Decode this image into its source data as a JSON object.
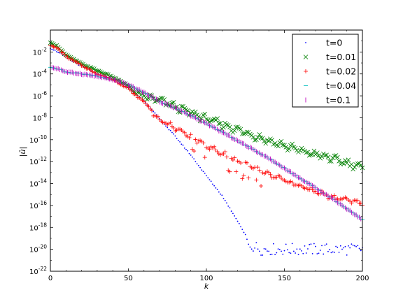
{
  "chart_data": {
    "type": "scatter",
    "title": "",
    "xlabel": "k",
    "ylabel": "|û|",
    "xlim": [
      0,
      200
    ],
    "ylim": [
      1e-22,
      1
    ],
    "yscale": "log",
    "grid": false,
    "legend_position": "top-right",
    "x_ticks": [
      0,
      50,
      100,
      150,
      200
    ],
    "x_tick_labels": [
      "0",
      "50",
      "100",
      "150",
      "200"
    ],
    "y_ticks": [
      1e-22,
      1e-20,
      1e-18,
      1e-16,
      1e-14,
      1e-12,
      1e-10,
      1e-08,
      1e-06,
      0.0001,
      0.01
    ],
    "y_tick_labels": [
      {
        "base": "10",
        "exp": "-22"
      },
      {
        "base": "10",
        "exp": "-20"
      },
      {
        "base": "10",
        "exp": "-18"
      },
      {
        "base": "10",
        "exp": "-16"
      },
      {
        "base": "10",
        "exp": "-14"
      },
      {
        "base": "10",
        "exp": "-12"
      },
      {
        "base": "10",
        "exp": "-10"
      },
      {
        "base": "10",
        "exp": "-8"
      },
      {
        "base": "10",
        "exp": "-6"
      },
      {
        "base": "10",
        "exp": "-4"
      },
      {
        "base": "10",
        "exp": "-2"
      }
    ],
    "series": [
      {
        "name": "t=0",
        "marker": "dot",
        "color": "#0000ff",
        "points": [
          [
            0,
            0.02
          ],
          [
            5,
            0.01
          ],
          [
            10,
            0.003
          ],
          [
            20,
            0.0005
          ],
          [
            30,
            0.0001
          ],
          [
            40,
            3e-05
          ],
          [
            50,
            5e-06
          ],
          [
            60,
            4e-07
          ],
          [
            65,
            5e-08
          ],
          [
            70,
            8e-09
          ],
          [
            80,
            2e-10
          ],
          [
            90,
            4e-12
          ],
          [
            100,
            5e-14
          ],
          [
            110,
            8e-16
          ],
          [
            120,
            4e-18
          ],
          [
            125,
            2e-19
          ],
          [
            127,
            3e-20
          ],
          [
            135,
            1e-20
          ],
          [
            150,
            1e-20
          ],
          [
            170,
            1e-20
          ],
          [
            190,
            1e-20
          ],
          [
            200,
            1e-20
          ]
        ]
      },
      {
        "name": "t=0.01",
        "marker": "x",
        "color": "#008000",
        "points": [
          [
            0,
            0.07
          ],
          [
            5,
            0.03
          ],
          [
            10,
            0.005
          ],
          [
            20,
            0.0008
          ],
          [
            30,
            0.0002
          ],
          [
            40,
            5e-05
          ],
          [
            50,
            8e-06
          ],
          [
            55,
            1.5e-06
          ],
          [
            60,
            8e-07
          ],
          [
            70,
            4e-07
          ],
          [
            80,
            1e-07
          ],
          [
            100,
            8e-09
          ],
          [
            120,
            8e-10
          ],
          [
            140,
            8e-11
          ],
          [
            160,
            1e-11
          ],
          [
            180,
            2e-12
          ],
          [
            200,
            3e-13
          ]
        ]
      },
      {
        "name": "t=0.02",
        "marker": "+",
        "color": "#ff0000",
        "points": [
          [
            0,
            0.04
          ],
          [
            5,
            0.02
          ],
          [
            10,
            0.004
          ],
          [
            20,
            0.0006
          ],
          [
            30,
            0.0001
          ],
          [
            40,
            3e-05
          ],
          [
            50,
            5e-06
          ],
          [
            55,
            1e-06
          ],
          [
            60,
            3e-07
          ],
          [
            65,
            5e-08
          ],
          [
            70,
            1e-08
          ],
          [
            80,
            2e-09
          ],
          [
            90,
            3e-10
          ],
          [
            100,
            5e-11
          ],
          [
            110,
            9e-12
          ],
          [
            120,
            2e-12
          ],
          [
            140,
            1e-13
          ],
          [
            160,
            1e-14
          ],
          [
            180,
            1e-15
          ],
          [
            200,
            3e-16
          ]
        ]
      },
      {
        "name": "t=0.04",
        "marker": "-",
        "color": "#00bfbf",
        "points": [
          [
            0,
            0.0004
          ],
          [
            5,
            0.0003
          ],
          [
            10,
            0.00015
          ],
          [
            20,
            0.0001
          ],
          [
            30,
            6e-05
          ],
          [
            40,
            3e-05
          ],
          [
            50,
            1e-05
          ],
          [
            60,
            2e-06
          ],
          [
            70,
            3e-07
          ],
          [
            80,
            8e-08
          ],
          [
            100,
            3e-09
          ],
          [
            120,
            8e-11
          ],
          [
            140,
            2e-12
          ],
          [
            160,
            3e-14
          ],
          [
            180,
            5e-16
          ],
          [
            200,
            5e-18
          ]
        ]
      },
      {
        "name": "t=0.1",
        "marker": "|",
        "color": "#bf00bf",
        "points": [
          [
            0,
            0.0004
          ],
          [
            5,
            0.0003
          ],
          [
            10,
            0.00015
          ],
          [
            20,
            0.0001
          ],
          [
            30,
            6e-05
          ],
          [
            40,
            3e-05
          ],
          [
            50,
            1e-05
          ],
          [
            60,
            2e-06
          ],
          [
            70,
            3e-07
          ],
          [
            80,
            8e-08
          ],
          [
            100,
            3e-09
          ],
          [
            120,
            8e-11
          ],
          [
            140,
            2e-12
          ],
          [
            160,
            3e-14
          ],
          [
            180,
            5e-16
          ],
          [
            200,
            5e-18
          ]
        ]
      }
    ]
  }
}
